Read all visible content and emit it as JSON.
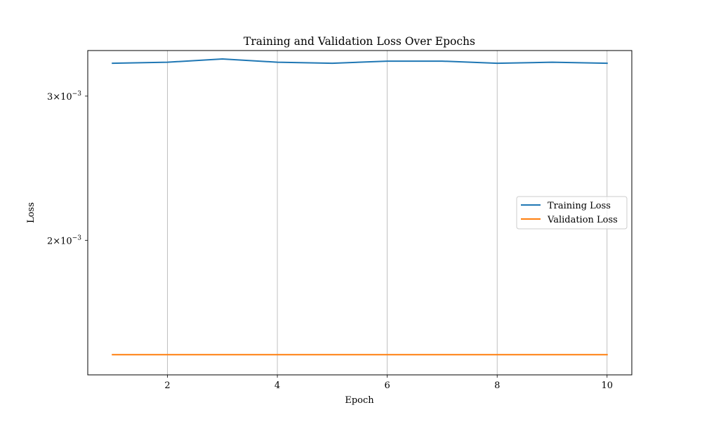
{
  "chart_data": {
    "type": "line",
    "title": "Training and Validation Loss Over Epochs",
    "xlabel": "Epoch",
    "ylabel": "Loss",
    "x": [
      1,
      2,
      3,
      4,
      5,
      6,
      7,
      8,
      9,
      10
    ],
    "series": [
      {
        "name": "Training Loss",
        "color": "#1f77b4",
        "values": [
          0.00329,
          0.0033,
          0.00333,
          0.0033,
          0.00329,
          0.00331,
          0.00331,
          0.00329,
          0.0033,
          0.00329
        ]
      },
      {
        "name": "Validation Loss",
        "color": "#ff7f0e",
        "values": [
          0.00145,
          0.00145,
          0.00145,
          0.00145,
          0.00145,
          0.00145,
          0.00145,
          0.00145,
          0.00145,
          0.00145
        ]
      }
    ],
    "xticks": [
      2,
      4,
      6,
      8,
      10
    ],
    "xlim": [
      0.55,
      10.45
    ],
    "yscale": "log",
    "ylim": [
      0.00137,
      0.00341
    ],
    "yticks": [
      {
        "value": 0.003,
        "mantissa": "3",
        "base": "10",
        "exponent": "−3"
      },
      {
        "value": 0.002,
        "mantissa": "2",
        "base": "10",
        "exponent": "−3"
      }
    ],
    "grid": "x-only",
    "legend_position": "center-right"
  }
}
